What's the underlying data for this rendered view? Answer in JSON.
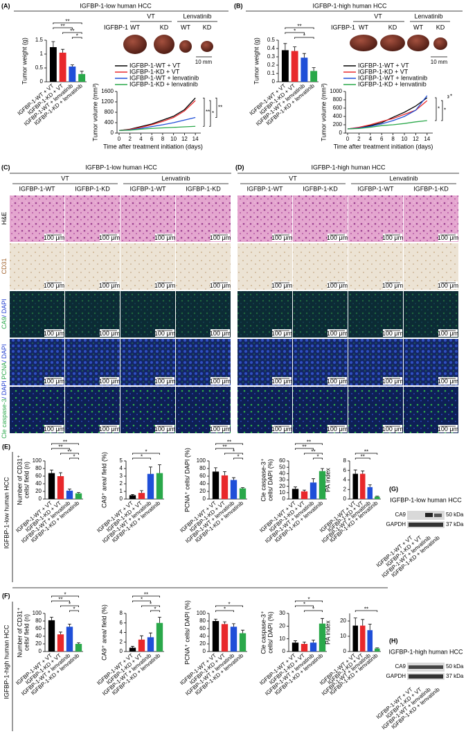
{
  "panels": {
    "A": {
      "label": "(A)",
      "header": "IGFBP-1-low human HCC",
      "groups": [
        "VT",
        "Lenvatinib"
      ],
      "row_label": "IGFBP-1",
      "columns": [
        "WT",
        "KD",
        "WT",
        "KD"
      ],
      "scale": "10 mm"
    },
    "B": {
      "label": "(B)",
      "header": "IGFBP-1-high human HCC",
      "groups": [
        "VT",
        "Lenvatinib"
      ],
      "row_label": "IGFBP-1",
      "columns": [
        "WT",
        "KD",
        "WT",
        "KD"
      ],
      "scale": "10 mm"
    },
    "C": {
      "label": "(C)",
      "header": "IGFBP-1-low human HCC",
      "groups": [
        "VT",
        "Lenvatinib"
      ],
      "columns": [
        "IGFBP-1-WT",
        "IGFBP-1-KD",
        "IGFBP-1-WT",
        "IGFBP-1-KD"
      ]
    },
    "D": {
      "label": "(D)",
      "header": "IGFBP-1-high human HCC",
      "groups": [
        "VT",
        "Lenvatinib"
      ],
      "columns": [
        "IGFBP-1-WT",
        "IGFBP-1-KD",
        "IGFBP-1-WT",
        "IGFBP-1-KD"
      ]
    },
    "E": {
      "label": "(E)",
      "side": "IGFBP-1-low human HCC"
    },
    "F": {
      "label": "(F)",
      "side": "IGFBP-1-high human HCC"
    },
    "G": {
      "label": "(G)",
      "header": "IGFBP-1-low human HCC",
      "bands": [
        "CA9",
        "GAPDH"
      ],
      "sizes": [
        "50 kDa",
        "37 kDa"
      ],
      "lanes": [
        "IGFBP-1-WT + VT",
        "IGFBP-1-KD + VT",
        "IGFBP-1-WT + lenvatinib",
        "IGFBP-1-KD + lenvatinib"
      ]
    },
    "H": {
      "label": "(H)",
      "header": "IGFBP-1-high human HCC",
      "bands": [
        "CA9",
        "GAPDH"
      ],
      "sizes": [
        "50 kDa",
        "37 kDa"
      ],
      "lanes": [
        "IGFBP-1-WT + VT",
        "IGFBP-1-KD + VT",
        "IGFBP-1-WT + lenvatinib",
        "IGFBP-1-KD + lenvatinib"
      ]
    }
  },
  "images": {
    "rows": [
      [
        "H&E"
      ],
      [
        "CD31"
      ],
      [
        "CA9",
        "/ DAPI"
      ],
      [
        "PCNA",
        "/ DAPI"
      ],
      [
        "Cle caspase-3",
        "/ DAPI"
      ]
    ],
    "scale_bar": "100 μm"
  },
  "chart_data": [
    {
      "type": "bar",
      "ylabel": [
        "Tumor weight (g)"
      ],
      "categories": [
        "IGFBP-1-WT + VT",
        "IGFBP-1-KD + VT",
        "IGFBP-1-WT + lenvatinib",
        "IGFBP-1-KD + lenvatinib"
      ],
      "values": [
        1.25,
        1.05,
        0.55,
        0.28
      ],
      "errors": [
        0.2,
        0.12,
        0.06,
        0.1
      ],
      "colors": [
        "#000000",
        "#e8282b",
        "#1f4fd8",
        "#2aa84a"
      ],
      "ylim": [
        0,
        1.5
      ],
      "yticks": [
        0,
        0.5,
        1,
        1.5
      ],
      "annotations": [
        "**",
        "**",
        "**",
        "*"
      ]
    },
    {
      "type": "line",
      "ylabel": [
        "Tumor volume (mm³)"
      ],
      "xlabel": "Time after treatment initiation (days)",
      "x": [
        0,
        2,
        4,
        6,
        8,
        10,
        12,
        14
      ],
      "xlim": [
        0,
        15
      ],
      "xticks": [
        0,
        2,
        4,
        6,
        8,
        10,
        12,
        14
      ],
      "ylim": [
        0,
        1600
      ],
      "yticks": [
        0,
        400,
        800,
        1200,
        1600
      ],
      "series": [
        {
          "name": "IGFBP-1-WT + VT",
          "color": "#000000",
          "values": [
            100,
            150,
            250,
            350,
            500,
            650,
            900,
            1350
          ]
        },
        {
          "name": "IGFBP-1-KD + VT",
          "color": "#e8282b",
          "values": [
            100,
            140,
            220,
            320,
            450,
            600,
            850,
            1250
          ]
        },
        {
          "name": "IGFBP-1-WT + lenvatinib",
          "color": "#1f4fd8",
          "values": [
            100,
            120,
            180,
            250,
            320,
            400,
            500,
            600
          ]
        },
        {
          "name": "IGFBP-1-KD + lenvatinib",
          "color": "#2aa84a",
          "values": [
            100,
            110,
            150,
            180,
            200,
            220,
            240,
            260
          ]
        }
      ],
      "annotations": [
        "**",
        "*",
        "**"
      ]
    },
    {
      "type": "bar",
      "ylabel": [
        "Tumor weight (g)"
      ],
      "categories": [
        "IGFBP-1-WT + VT",
        "IGFBP-1-KD + VT",
        "IGFBP-1-WT + lenvatinib",
        "IGFBP-1-KD + lenvatinib"
      ],
      "values": [
        0.38,
        0.37,
        0.29,
        0.13
      ],
      "errors": [
        0.08,
        0.05,
        0.05,
        0.04
      ],
      "colors": [
        "#000000",
        "#e8282b",
        "#1f4fd8",
        "#2aa84a"
      ],
      "ylim": [
        0,
        0.5
      ],
      "yticks": [
        0,
        0.1,
        0.2,
        0.3,
        0.4,
        0.5
      ],
      "annotations": [
        "**",
        "*",
        "*"
      ]
    },
    {
      "type": "line",
      "ylabel": [
        "Tumor volume (mm³)"
      ],
      "xlabel": "Time after treatment initiation (days)",
      "x": [
        0,
        2,
        4,
        6,
        8,
        10,
        12,
        14
      ],
      "xlim": [
        0,
        15
      ],
      "xticks": [
        0,
        2,
        4,
        6,
        8,
        10,
        12,
        14
      ],
      "ylim": [
        0,
        1000
      ],
      "yticks": [
        0,
        200,
        400,
        600,
        800,
        1000
      ],
      "series": [
        {
          "name": "IGFBP-1-WT + VT",
          "color": "#000000",
          "values": [
            100,
            130,
            180,
            250,
            380,
            500,
            650,
            850
          ]
        },
        {
          "name": "IGFBP-1-KD + VT",
          "color": "#e8282b",
          "values": [
            100,
            140,
            200,
            280,
            350,
            450,
            550,
            780
          ]
        },
        {
          "name": "IGFBP-1-WT + lenvatinib",
          "color": "#1f4fd8",
          "values": [
            100,
            120,
            160,
            220,
            300,
            400,
            550,
            900
          ]
        },
        {
          "name": "IGFBP-1-KD + lenvatinib",
          "color": "#2aa84a",
          "values": [
            100,
            110,
            140,
            180,
            200,
            230,
            270,
            300
          ]
        }
      ],
      "annotations": [
        "*",
        "*",
        "*"
      ]
    },
    {
      "type": "bar",
      "ylabel": [
        "Number of CD31⁺",
        "cells/ field (n)"
      ],
      "categories": [
        "IGFBP-1-WT + VT",
        "IGFBP-1-KD + VT",
        "IGFBP-1-WT + lenvatinib",
        "IGFBP-1-KD + lenvatinib"
      ],
      "values": [
        68,
        60,
        22,
        15
      ],
      "errors": [
        8,
        9,
        4,
        2
      ],
      "colors": [
        "#000000",
        "#e8282b",
        "#1f4fd8",
        "#2aa84a"
      ],
      "ylim": [
        0,
        100
      ],
      "yticks": [
        0,
        20,
        40,
        60,
        80,
        100
      ],
      "annotations": [
        "**",
        "**",
        "**",
        "*"
      ]
    },
    {
      "type": "bar",
      "ylabel": [
        "CA9⁺ area/ field (%)"
      ],
      "categories": [
        "IGFBP-1-WT + VT",
        "IGFBP-1-KD + VT",
        "IGFBP-1-WT + lenvatinib",
        "IGFBP-1-KD + lenvatinib"
      ],
      "values": [
        0.5,
        0.8,
        3.3,
        3.4
      ],
      "errors": [
        0.1,
        0.3,
        0.9,
        1.1
      ],
      "colors": [
        "#000000",
        "#e8282b",
        "#1f4fd8",
        "#2aa84a"
      ],
      "ylim": [
        0,
        5
      ],
      "yticks": [
        0,
        1,
        2,
        3,
        4,
        5
      ],
      "annotations": [
        "*",
        "*"
      ]
    },
    {
      "type": "bar",
      "ylabel": [
        "PCNA⁺ cells/ DAPI (%)"
      ],
      "categories": [
        "IGFBP-1-WT + VT",
        "IGFBP-1-KD + VT",
        "IGFBP-1-WT + lenvatinib",
        "IGFBP-1-KD + lenvatinib"
      ],
      "values": [
        72,
        62,
        50,
        28
      ],
      "errors": [
        10,
        10,
        6,
        2
      ],
      "colors": [
        "#000000",
        "#e8282b",
        "#1f4fd8",
        "#2aa84a"
      ],
      "ylim": [
        0,
        100
      ],
      "yticks": [
        0,
        20,
        40,
        60,
        80,
        100
      ],
      "annotations": [
        "**",
        "**",
        "*",
        "*"
      ]
    },
    {
      "type": "bar",
      "ylabel": [
        "Cle caspase-3⁺",
        "cells/ DAPI (%)"
      ],
      "categories": [
        "IGFBP-1-WT + VT",
        "IGFBP-1-KD + VT",
        "IGFBP-1-WT + lenvatinib",
        "IGFBP-1-KD + lenvatinib"
      ],
      "values": [
        16,
        12,
        26,
        44
      ],
      "errors": [
        3,
        2,
        6,
        4
      ],
      "colors": [
        "#000000",
        "#e8282b",
        "#1f4fd8",
        "#2aa84a"
      ],
      "ylim": [
        0,
        60
      ],
      "yticks": [
        0,
        10,
        20,
        30,
        40,
        50,
        60
      ],
      "annotations": [
        "**",
        "**",
        "**",
        "*"
      ]
    },
    {
      "type": "bar",
      "ylabel": [
        "PA index"
      ],
      "categories": [
        "IGFBP-1-WT + VT",
        "IGFBP-1-KD + VT",
        "IGFBP-1-WT + lenvatinib",
        "IGFBP-1-KD + lenvatinib"
      ],
      "values": [
        5.3,
        5.3,
        2.5,
        0.5
      ],
      "errors": [
        0.8,
        0.6,
        0.5,
        0.1
      ],
      "colors": [
        "#000000",
        "#e8282b",
        "#1f4fd8",
        "#2aa84a"
      ],
      "ylim": [
        0,
        8
      ],
      "yticks": [
        0,
        2,
        4,
        6,
        8
      ],
      "annotations": [
        "**",
        "**"
      ]
    },
    {
      "type": "bar",
      "ylabel": [
        "Number of CD31⁺",
        "cells/ field (n)"
      ],
      "categories": [
        "IGFBP-1-WT + VT",
        "IGFBP-1-KD + VT",
        "IGFBP-1-WT + lenvatinib",
        "IGFBP-1-KD + lenvatinib"
      ],
      "values": [
        82,
        45,
        65,
        20
      ],
      "errors": [
        8,
        6,
        7,
        3
      ],
      "colors": [
        "#000000",
        "#e8282b",
        "#1f4fd8",
        "#2aa84a"
      ],
      "ylim": [
        0,
        100
      ],
      "yticks": [
        0,
        20,
        40,
        60,
        80,
        100
      ],
      "annotations": [
        "*",
        "**",
        "*",
        "*"
      ]
    },
    {
      "type": "bar",
      "ylabel": [
        "CA9⁺ area/ field (%)"
      ],
      "categories": [
        "IGFBP-1-WT + VT",
        "IGFBP-1-KD + VT",
        "IGFBP-1-WT + lenvatinib",
        "IGFBP-1-KD + lenvatinib"
      ],
      "values": [
        0.8,
        2.5,
        3,
        6
      ],
      "errors": [
        0.3,
        0.8,
        0.9,
        1.2
      ],
      "colors": [
        "#000000",
        "#e8282b",
        "#1f4fd8",
        "#2aa84a"
      ],
      "ylim": [
        0,
        8
      ],
      "yticks": [
        0,
        2,
        4,
        6,
        8
      ],
      "annotations": [
        "**",
        "*",
        "*",
        "*"
      ]
    },
    {
      "type": "bar",
      "ylabel": [
        "PCNA⁺ cells/ DAPI (%)"
      ],
      "categories": [
        "IGFBP-1-WT + VT",
        "IGFBP-1-KD + VT",
        "IGFBP-1-WT + lenvatinib",
        "IGFBP-1-KD + lenvatinib"
      ],
      "values": [
        80,
        72,
        65,
        48
      ],
      "errors": [
        5,
        6,
        8,
        8
      ],
      "colors": [
        "#000000",
        "#e8282b",
        "#1f4fd8",
        "#2aa84a"
      ],
      "ylim": [
        0,
        100
      ],
      "yticks": [
        0,
        20,
        40,
        60,
        80,
        100
      ],
      "annotations": [
        "*",
        "*"
      ]
    },
    {
      "type": "bar",
      "ylabel": [
        "Cle caspase-3⁺",
        "cells/ DAPI (%)"
      ],
      "categories": [
        "IGFBP-1-WT + VT",
        "IGFBP-1-KD + VT",
        "IGFBP-1-WT + lenvatinib",
        "IGFBP-1-KD + lenvatinib"
      ],
      "values": [
        7,
        6,
        7,
        22
      ],
      "errors": [
        1.5,
        1.5,
        2,
        4
      ],
      "colors": [
        "#000000",
        "#e8282b",
        "#1f4fd8",
        "#2aa84a"
      ],
      "ylim": [
        0,
        30
      ],
      "yticks": [
        0,
        10,
        20,
        30
      ],
      "annotations": [
        "*",
        "*",
        "*"
      ]
    },
    {
      "type": "bar",
      "ylabel": [
        "PA index"
      ],
      "categories": [
        "IGFBP-1-WT + VT",
        "IGFBP-1-KD + VT",
        "IGFBP-1-WT + lenvatinib",
        "IGFBP-1-KD + lenvatinib"
      ],
      "values": [
        17,
        17,
        14,
        2
      ],
      "errors": [
        5,
        4,
        4,
        0.4
      ],
      "colors": [
        "#000000",
        "#e8282b",
        "#1f4fd8",
        "#2aa84a"
      ],
      "ylim": [
        0,
        25
      ],
      "yticks": [
        0,
        10,
        20
      ],
      "annotations": [
        "**"
      ]
    }
  ]
}
